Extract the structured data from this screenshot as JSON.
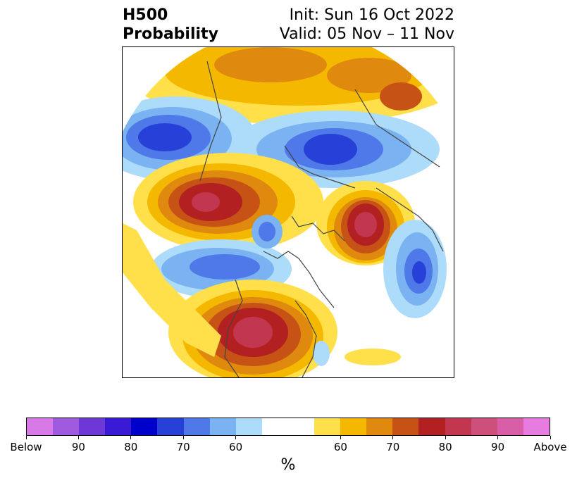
{
  "title": {
    "left_line1": "H500",
    "left_line2": "Probability",
    "right_line1": "Init: Sun 16 Oct 2022",
    "right_line2": "Valid: 05 Nov – 11 Nov"
  },
  "colorbar": {
    "colors": [
      "#d879e8",
      "#9f5ae0",
      "#6d38d6",
      "#3a1ad4",
      "#0000cc",
      "#2741d8",
      "#4f78e8",
      "#7ab2f2",
      "#addcfa",
      "#ffffff",
      "#ffffff",
      "#ffe04a",
      "#f5b800",
      "#e0890f",
      "#c75216",
      "#b22022",
      "#c23650",
      "#cc4f7c",
      "#d95ea8",
      "#e67be0"
    ],
    "tick_labels": [
      "Below",
      "90",
      "80",
      "70",
      "60",
      "60",
      "70",
      "80",
      "90",
      "Above"
    ],
    "unit": "%"
  },
  "map": {
    "projection": "north-polar-stereographic",
    "anomalies": [
      {
        "region": "north-pacific-ridge",
        "sign": "above",
        "max_level": 80
      },
      {
        "region": "western-europe-ridge",
        "sign": "above",
        "max_level": 80
      },
      {
        "region": "north-america-ridge",
        "sign": "above",
        "max_level": 80
      },
      {
        "region": "russia-trough",
        "sign": "below",
        "max_level": 80
      },
      {
        "region": "aleutian-trough",
        "sign": "below",
        "max_level": 80
      },
      {
        "region": "north-atlantic-trough",
        "sign": "below",
        "max_level": 80
      },
      {
        "region": "arctic-canada-trough",
        "sign": "below",
        "max_level": 70
      }
    ]
  }
}
